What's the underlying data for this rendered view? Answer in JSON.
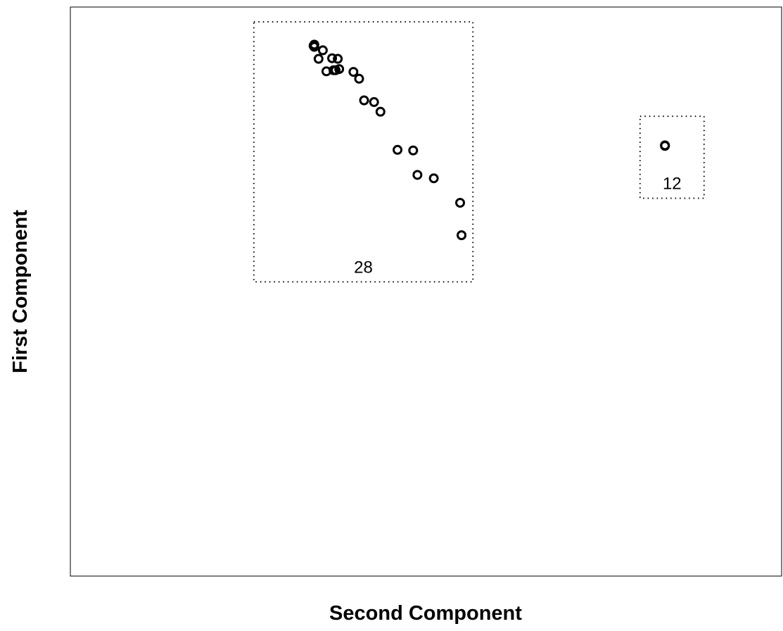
{
  "chart_data": {
    "type": "scatter",
    "xlabel": "Second Component",
    "ylabel": "First Component",
    "xlim": [
      0,
      100
    ],
    "ylim": [
      0,
      100
    ],
    "points": [
      {
        "x": 34.2,
        "y": 93.2
      },
      {
        "x": 34.3,
        "y": 93.4
      },
      {
        "x": 34.3,
        "y": 93.0
      },
      {
        "x": 35.5,
        "y": 92.4
      },
      {
        "x": 34.9,
        "y": 90.9
      },
      {
        "x": 36.8,
        "y": 91.0
      },
      {
        "x": 37.6,
        "y": 90.9
      },
      {
        "x": 37.0,
        "y": 88.9
      },
      {
        "x": 37.3,
        "y": 88.9
      },
      {
        "x": 37.8,
        "y": 89.1
      },
      {
        "x": 36.0,
        "y": 88.7
      },
      {
        "x": 39.8,
        "y": 88.6
      },
      {
        "x": 40.6,
        "y": 87.4
      },
      {
        "x": 41.3,
        "y": 83.6
      },
      {
        "x": 42.7,
        "y": 83.3
      },
      {
        "x": 43.6,
        "y": 81.6
      },
      {
        "x": 46.0,
        "y": 74.9
      },
      {
        "x": 48.2,
        "y": 74.8
      },
      {
        "x": 48.8,
        "y": 70.5
      },
      {
        "x": 51.1,
        "y": 69.9
      },
      {
        "x": 54.8,
        "y": 65.6
      },
      {
        "x": 55.0,
        "y": 59.9
      },
      {
        "x": 83.6,
        "y": 75.7
      },
      {
        "x": 83.6,
        "y": 75.6
      }
    ],
    "groups": [
      {
        "label": "28",
        "x_range": [
          25.8,
          56.6
        ],
        "y_range": [
          51.7,
          97.4
        ]
      },
      {
        "label": "12",
        "x_range": [
          80.1,
          89.1
        ],
        "y_range": [
          66.4,
          80.8
        ]
      }
    ],
    "grid": false,
    "legend": "none"
  }
}
